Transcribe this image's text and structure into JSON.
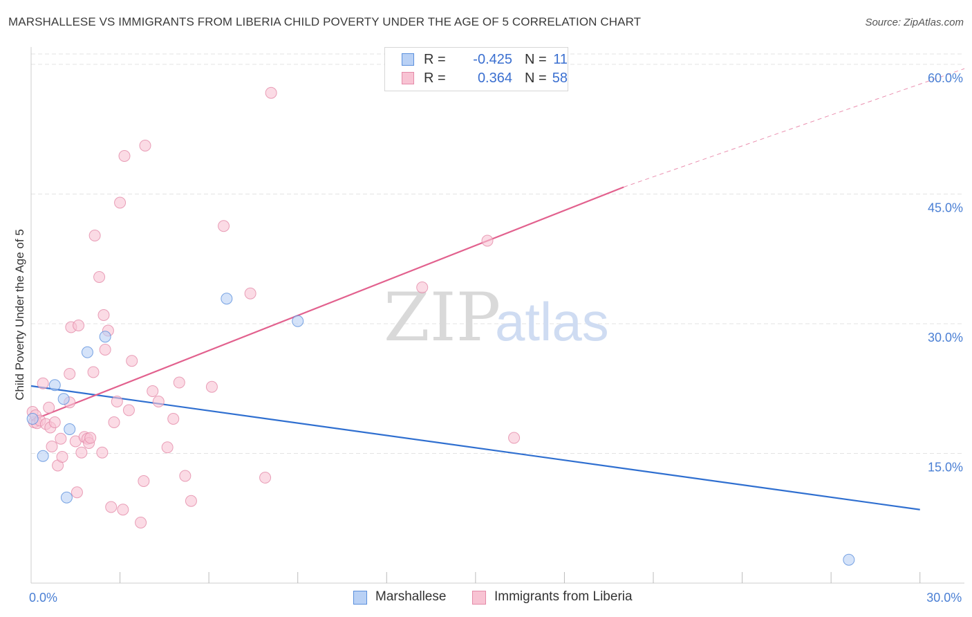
{
  "title": "MARSHALLESE VS IMMIGRANTS FROM LIBERIA CHILD POVERTY UNDER THE AGE OF 5 CORRELATION CHART",
  "source": "Source: ZipAtlas.com",
  "watermark": {
    "zip": "ZIP",
    "atlas": "atlas"
  },
  "colors": {
    "blue_fill": "#b9d1f5",
    "blue_stroke": "#5a8fdc",
    "blue_line": "#2f6fd0",
    "pink_fill": "#f8c3d3",
    "pink_stroke": "#e48aa8",
    "pink_line": "#e2618e",
    "tick_text": "#4a7fd4",
    "grid": "#e3e3e3"
  },
  "legend": {
    "rows": [
      {
        "r_label": "R =",
        "r_value": "-0.425",
        "n_label": "N =",
        "n_value": "11"
      },
      {
        "r_label": "R =",
        "r_value": "0.364",
        "n_label": "N =",
        "n_value": "58"
      }
    ]
  },
  "chart_data": {
    "type": "scatter",
    "title": "MARSHALLESE VS IMMIGRANTS FROM LIBERIA CHILD POVERTY UNDER THE AGE OF 5 CORRELATION CHART",
    "xlabel": "",
    "ylabel": "Child Poverty Under the Age of 5",
    "xlim": [
      0,
      31.5
    ],
    "ylim": [
      0,
      62
    ],
    "x_tick_labels": [
      {
        "value": 0,
        "label": "0.0%"
      },
      {
        "value": 30,
        "label": "30.0%"
      }
    ],
    "x_minor_ticks": [
      3,
      6,
      9,
      12,
      15,
      18,
      21,
      24,
      27,
      30
    ],
    "y_ticks": [
      {
        "value": 15,
        "label": "15.0%"
      },
      {
        "value": 30,
        "label": "30.0%"
      },
      {
        "value": 45,
        "label": "45.0%"
      },
      {
        "value": 60,
        "label": "60.0%"
      }
    ],
    "series": [
      {
        "name": "Marshallese",
        "color": "blue",
        "points": [
          [
            0.05,
            19.0
          ],
          [
            0.4,
            14.7
          ],
          [
            0.8,
            22.9
          ],
          [
            1.1,
            21.3
          ],
          [
            1.3,
            17.8
          ],
          [
            1.2,
            9.9
          ],
          [
            1.9,
            26.7
          ],
          [
            2.5,
            28.5
          ],
          [
            6.6,
            32.9
          ],
          [
            9.0,
            30.3
          ],
          [
            27.6,
            2.7
          ]
        ],
        "trend": {
          "x0": 0,
          "y0": 22.8,
          "x1": 30,
          "y1": 8.5,
          "dashed_to": null
        }
      },
      {
        "name": "Immigrants from Liberia",
        "color": "pink",
        "points": [
          [
            0.05,
            19.8
          ],
          [
            0.1,
            18.6
          ],
          [
            0.15,
            19.4
          ],
          [
            0.2,
            18.5
          ],
          [
            0.3,
            18.8
          ],
          [
            0.4,
            23.1
          ],
          [
            0.5,
            18.4
          ],
          [
            0.6,
            20.3
          ],
          [
            0.65,
            18.0
          ],
          [
            0.8,
            18.6
          ],
          [
            0.7,
            15.8
          ],
          [
            0.9,
            13.6
          ],
          [
            1.0,
            16.7
          ],
          [
            1.05,
            14.6
          ],
          [
            1.3,
            20.9
          ],
          [
            1.3,
            24.2
          ],
          [
            1.35,
            29.6
          ],
          [
            1.5,
            16.4
          ],
          [
            1.55,
            10.5
          ],
          [
            1.6,
            29.8
          ],
          [
            1.7,
            15.1
          ],
          [
            1.8,
            16.9
          ],
          [
            1.9,
            16.7
          ],
          [
            1.95,
            16.2
          ],
          [
            2.0,
            16.8
          ],
          [
            2.1,
            24.4
          ],
          [
            2.15,
            40.2
          ],
          [
            2.3,
            35.4
          ],
          [
            2.4,
            15.1
          ],
          [
            2.45,
            31.0
          ],
          [
            2.5,
            27.0
          ],
          [
            2.6,
            29.2
          ],
          [
            2.7,
            8.8
          ],
          [
            2.8,
            18.6
          ],
          [
            2.9,
            21.0
          ],
          [
            3.0,
            44.0
          ],
          [
            3.1,
            8.5
          ],
          [
            3.15,
            49.4
          ],
          [
            3.3,
            20.0
          ],
          [
            3.4,
            25.7
          ],
          [
            3.7,
            7.0
          ],
          [
            3.8,
            11.8
          ],
          [
            3.85,
            50.6
          ],
          [
            4.1,
            22.2
          ],
          [
            4.3,
            21.0
          ],
          [
            4.6,
            15.7
          ],
          [
            4.8,
            19.0
          ],
          [
            5.0,
            23.2
          ],
          [
            5.2,
            12.4
          ],
          [
            5.4,
            9.5
          ],
          [
            6.1,
            22.7
          ],
          [
            6.5,
            41.3
          ],
          [
            7.4,
            33.5
          ],
          [
            7.9,
            12.2
          ],
          [
            8.1,
            56.7
          ],
          [
            13.2,
            34.2
          ],
          [
            15.4,
            39.6
          ],
          [
            16.3,
            16.8
          ]
        ],
        "trend": {
          "x0": 0,
          "y0": 18.8,
          "x1": 20.0,
          "y1": 45.8,
          "dashed_x1": 31.5,
          "dashed_y1": 59.5
        }
      }
    ],
    "legend_position": "top-center",
    "grid": true
  },
  "bottom_legend": [
    {
      "label": "Marshallese"
    },
    {
      "label": "Immigrants from Liberia"
    }
  ]
}
